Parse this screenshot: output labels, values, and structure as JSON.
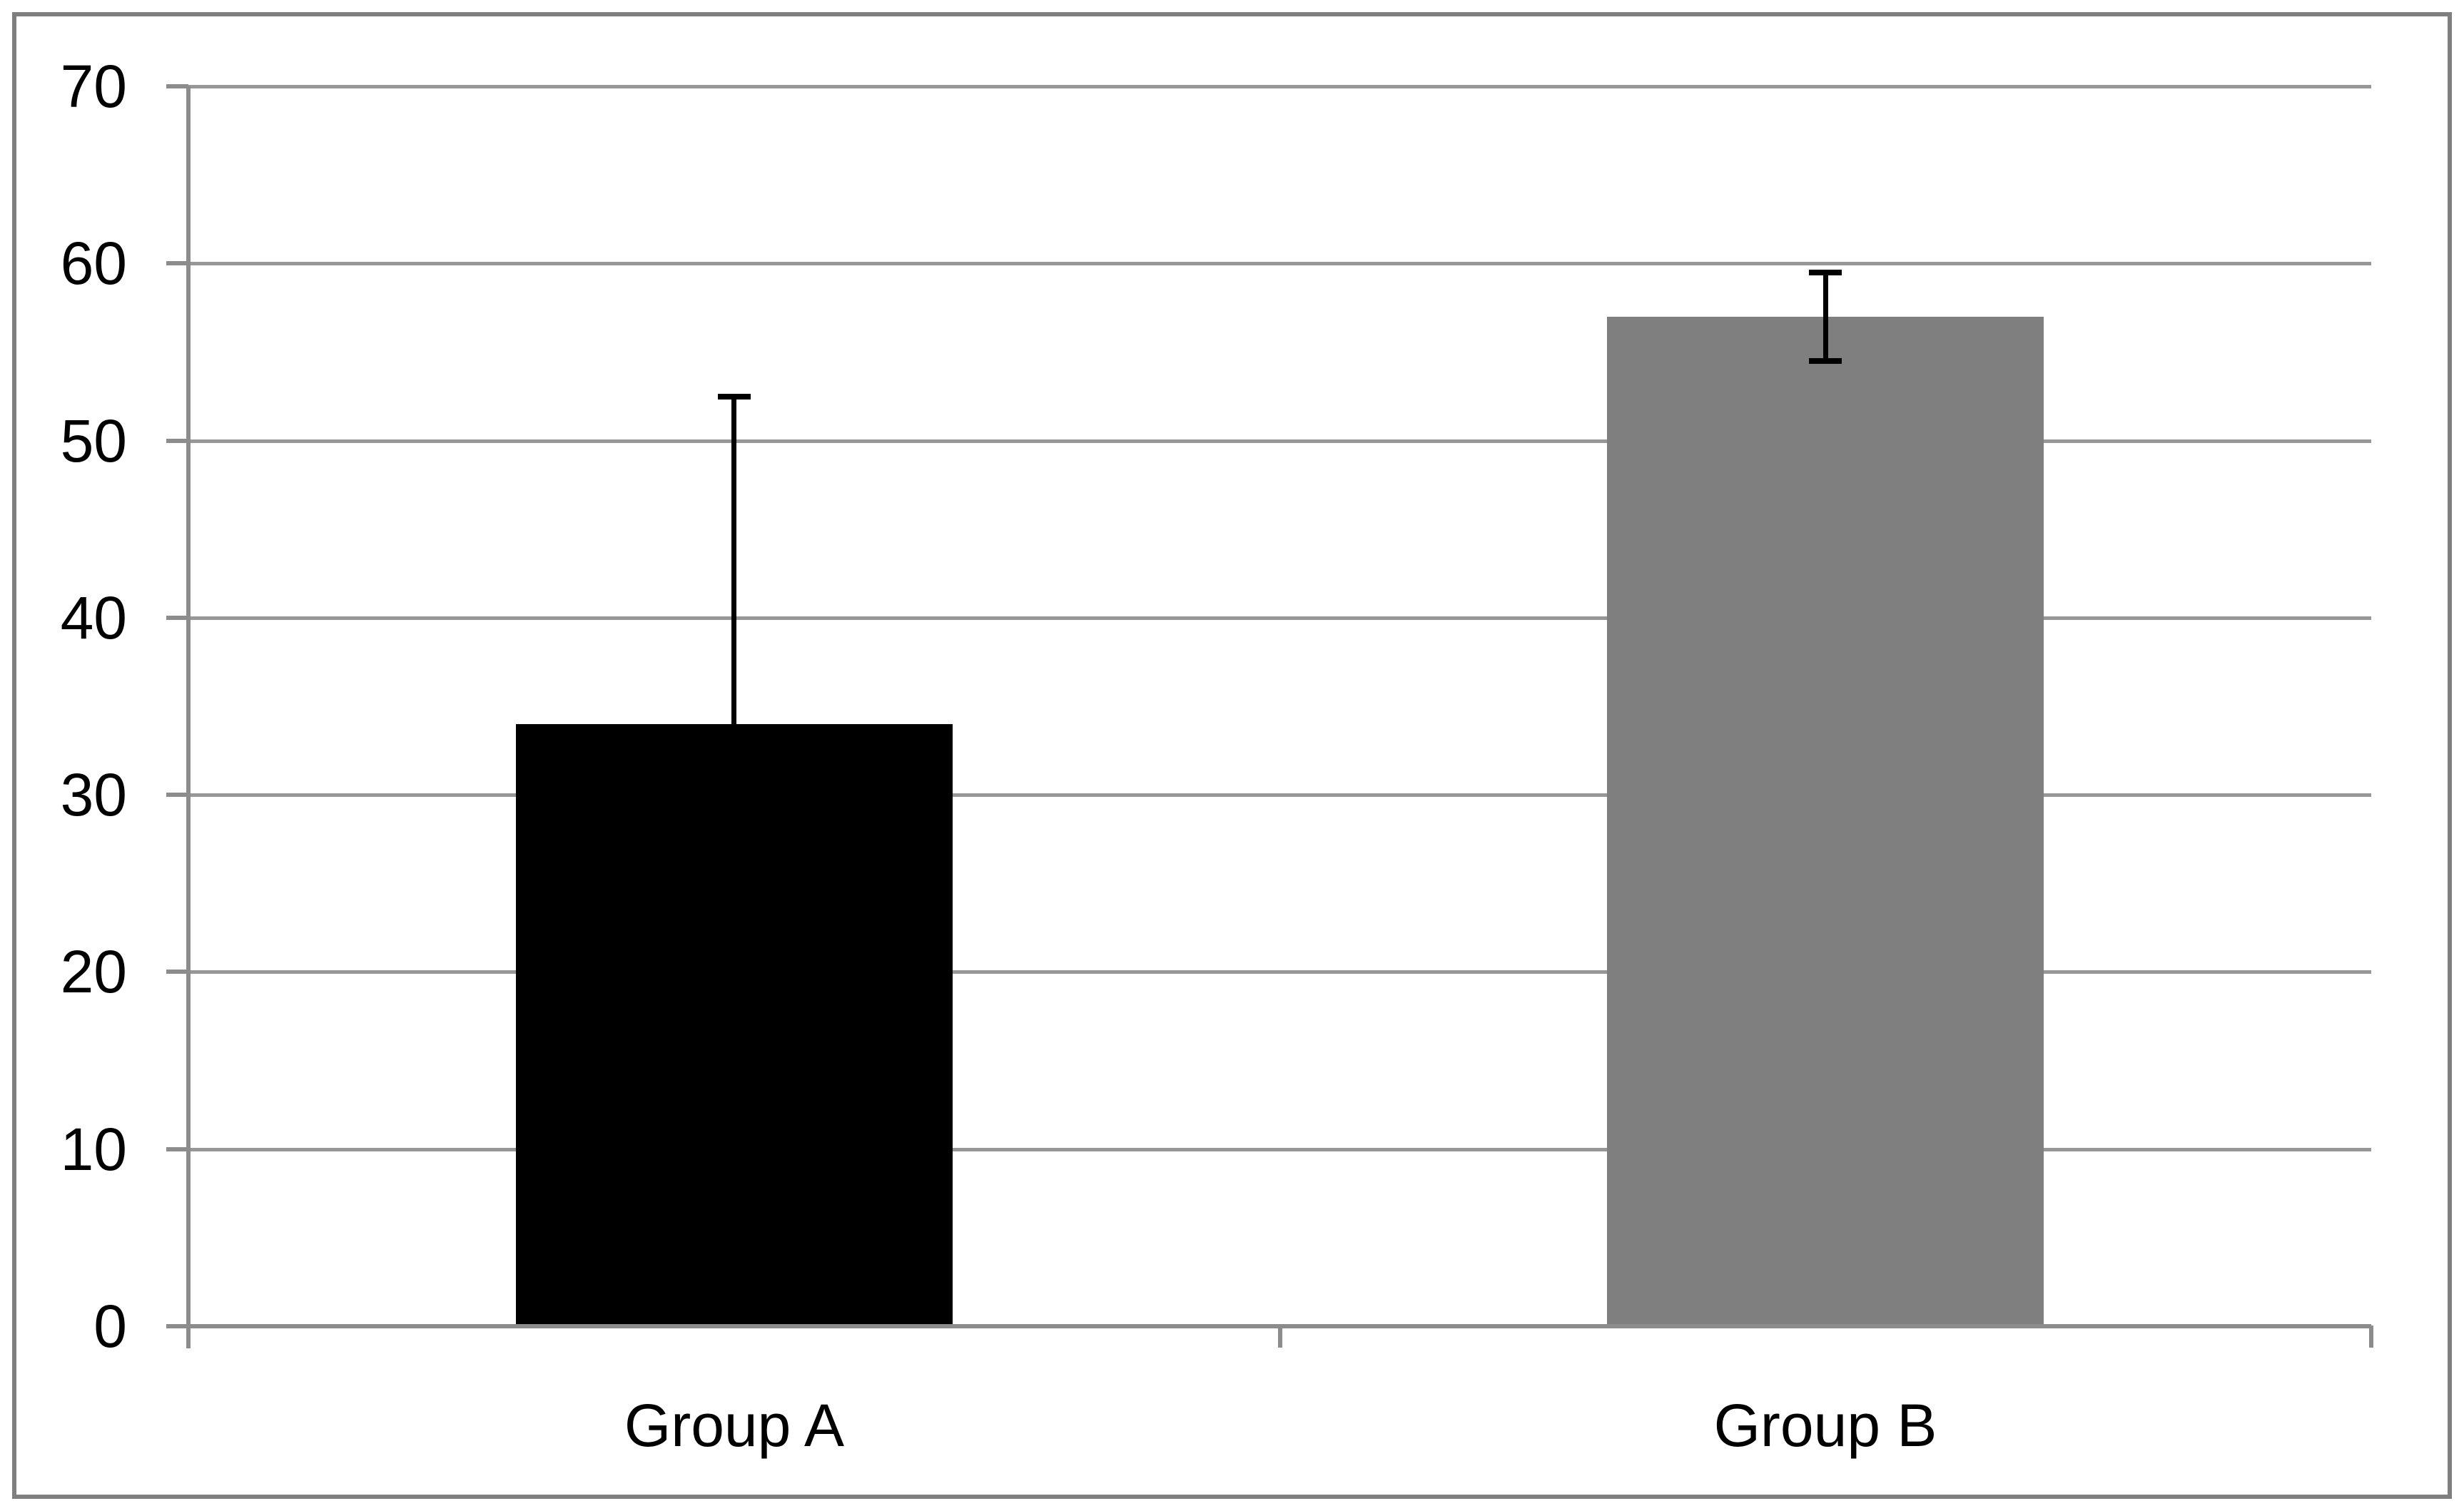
{
  "chart_data": {
    "type": "bar",
    "title": "",
    "xlabel": "",
    "ylabel": "",
    "categories": [
      "Group A",
      "Group B"
    ],
    "values": [
      34,
      57
    ],
    "error_bars": [
      {
        "plus": 18.5,
        "minus": 0
      },
      {
        "plus": 2.5,
        "minus": 2.5
      }
    ],
    "bar_colors": [
      "#000000",
      "#7f7f7f"
    ],
    "y_axis": {
      "min": 0,
      "max": 70,
      "step": 10,
      "tick_labels": [
        "0",
        "10",
        "20",
        "30",
        "40",
        "50",
        "60",
        "70"
      ]
    },
    "grid": "horizontal",
    "legend": "none",
    "colors": {
      "background": "#ffffff",
      "figure_border": "#7f7f7f",
      "gridline": "#979797",
      "axis": "#8c8c8c",
      "error_bar": "#000000",
      "text": "#000000"
    }
  }
}
